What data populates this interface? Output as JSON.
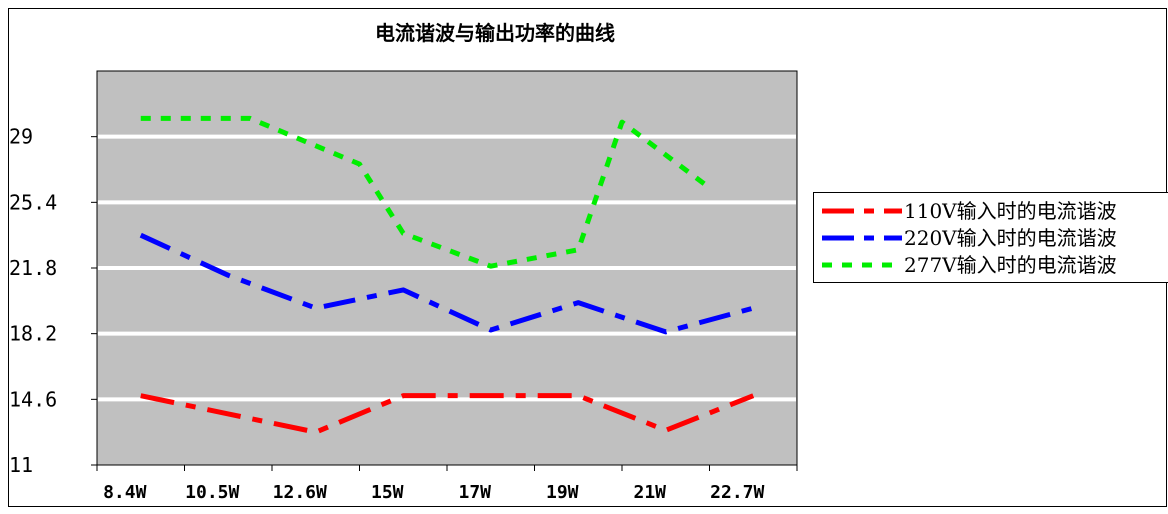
{
  "chart_data": {
    "type": "line",
    "title": "电流谐波与输出功率的曲线",
    "xlabel": "",
    "ylabel": "",
    "categories": [
      "8.4W",
      "10.5W",
      "12.6W",
      "15W",
      "17W",
      "19W",
      "21W",
      "22.7W"
    ],
    "ylim": [
      11,
      32.6
    ],
    "yticks": [
      "11",
      "14.6",
      "18.2",
      "21.8",
      "25.4",
      "29"
    ],
    "grid": true,
    "legend_position": "right",
    "series": [
      {
        "name": "110V输入时的电流谐波",
        "color": "#ff0000",
        "points": [
          [
            0,
            14.8
          ],
          [
            1,
            13.8
          ],
          [
            2,
            12.8
          ],
          [
            3,
            14.8
          ],
          [
            4,
            14.8
          ],
          [
            5,
            14.8
          ],
          [
            6,
            12.9
          ],
          [
            7,
            14.8
          ]
        ]
      },
      {
        "name": "220V输入时的电流谐波",
        "color": "#0000ff",
        "points": [
          [
            0,
            23.6
          ],
          [
            1,
            21.4
          ],
          [
            2,
            19.6
          ],
          [
            3,
            20.6
          ],
          [
            4,
            18.4
          ],
          [
            5,
            19.9
          ],
          [
            6,
            18.3
          ],
          [
            7,
            19.6
          ]
        ]
      },
      {
        "name": "277V输入时的电流谐波",
        "color": "#00ee00",
        "points": [
          [
            0,
            30.0
          ],
          [
            0.5,
            30.0
          ],
          [
            1.25,
            30.0
          ],
          [
            2.5,
            27.5
          ],
          [
            3,
            23.7
          ],
          [
            4,
            21.9
          ],
          [
            5,
            22.8
          ],
          [
            5.5,
            29.8
          ],
          [
            6.5,
            26.2
          ]
        ]
      }
    ]
  }
}
